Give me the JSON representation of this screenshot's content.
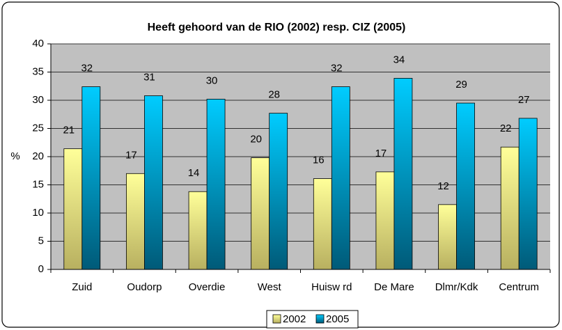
{
  "chart_data": {
    "type": "bar",
    "title": "Heeft gehoord van de RIO (2002) resp. CIZ (2005)",
    "y_label": "%",
    "categories": [
      "Zuid",
      "Oudorp",
      "Overdie",
      "West",
      "Huisw rd",
      "De Mare",
      "Dlmr/Kdk",
      "Centrum"
    ],
    "series": [
      {
        "name": "2002",
        "color": "#ffff99",
        "values": [
          21.4,
          17,
          13.8,
          19.8,
          16.1,
          17.3,
          11.5,
          21.7
        ],
        "value_labels": [
          "21",
          "17",
          "14",
          "20",
          "16",
          "17",
          "12",
          "22"
        ]
      },
      {
        "name": "2005",
        "color": "#00ccff",
        "values": [
          32.4,
          30.8,
          30.2,
          27.7,
          32.4,
          33.9,
          29.5,
          26.8
        ],
        "value_labels": [
          "32",
          "31",
          "30",
          "28",
          "32",
          "34",
          "29",
          "27"
        ]
      }
    ],
    "ylim": [
      0,
      40
    ],
    "yticks": [
      0,
      5,
      10,
      15,
      20,
      25,
      30,
      35,
      40
    ],
    "grid": true,
    "legend": "bottom"
  }
}
